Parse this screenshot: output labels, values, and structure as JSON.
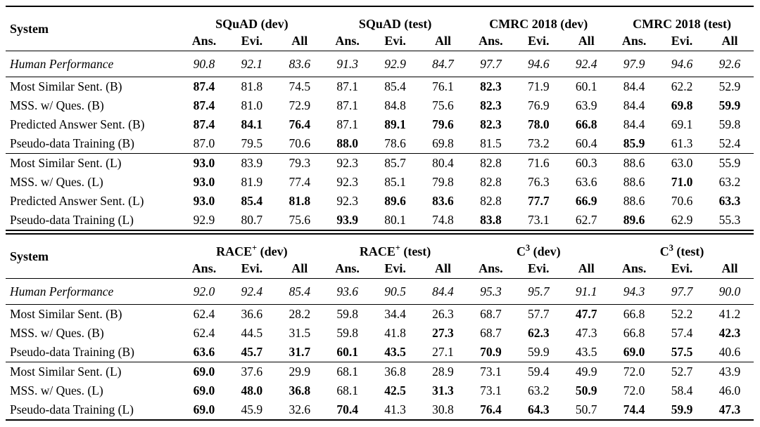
{
  "colors": {
    "text": "#000000",
    "background": "#ffffff",
    "rule": "#000000"
  },
  "tables": [
    {
      "system_header": "System",
      "groups": [
        {
          "base": "SQuAD",
          "sup": "",
          "rest": " (dev)"
        },
        {
          "base": "SQuAD",
          "sup": "",
          "rest": " (test)"
        },
        {
          "base": "CMRC 2018",
          "sup": "",
          "rest": " (dev)"
        },
        {
          "base": "CMRC 2018",
          "sup": "",
          "rest": " (test)"
        }
      ],
      "subheaders": [
        "Ans.",
        "Evi.",
        "All",
        "Ans.",
        "Evi.",
        "All",
        "Ans.",
        "Evi.",
        "All",
        "Ans.",
        "Evi.",
        "All"
      ],
      "human_row": {
        "label": "Human Performance",
        "values": [
          "90.8",
          "92.1",
          "83.6",
          "91.3",
          "92.9",
          "84.7",
          "97.7",
          "94.6",
          "92.4",
          "97.9",
          "94.6",
          "92.6"
        ]
      },
      "blocks": [
        {
          "rows": [
            {
              "label": "Most Similar Sent. (B)",
              "values": [
                "87.4",
                "81.8",
                "74.5",
                "87.1",
                "85.4",
                "76.1",
                "82.3",
                "71.9",
                "60.1",
                "84.4",
                "62.2",
                "52.9"
              ],
              "bold": [
                0,
                6
              ]
            },
            {
              "label": "MSS. w/ Ques. (B)",
              "values": [
                "87.4",
                "81.0",
                "72.9",
                "87.1",
                "84.8",
                "75.6",
                "82.3",
                "76.9",
                "63.9",
                "84.4",
                "69.8",
                "59.9"
              ],
              "bold": [
                0,
                6,
                10,
                11
              ]
            },
            {
              "label": "Predicted Answer Sent. (B)",
              "values": [
                "87.4",
                "84.1",
                "76.4",
                "87.1",
                "89.1",
                "79.6",
                "82.3",
                "78.0",
                "66.8",
                "84.4",
                "69.1",
                "59.8"
              ],
              "bold": [
                0,
                1,
                2,
                4,
                5,
                6,
                7,
                8
              ]
            },
            {
              "label": "Pseudo-data Training (B)",
              "values": [
                "87.0",
                "79.5",
                "70.6",
                "88.0",
                "78.6",
                "69.8",
                "81.5",
                "73.2",
                "60.4",
                "85.9",
                "61.3",
                "52.4"
              ],
              "bold": [
                3,
                9
              ]
            }
          ]
        },
        {
          "rows": [
            {
              "label": "Most Similar Sent. (L)",
              "values": [
                "93.0",
                "83.9",
                "79.3",
                "92.3",
                "85.7",
                "80.4",
                "82.8",
                "71.6",
                "60.3",
                "88.6",
                "63.0",
                "55.9"
              ],
              "bold": [
                0
              ]
            },
            {
              "label": "MSS. w/ Ques. (L)",
              "values": [
                "93.0",
                "81.9",
                "77.4",
                "92.3",
                "85.1",
                "79.8",
                "82.8",
                "76.3",
                "63.6",
                "88.6",
                "71.0",
                "63.2"
              ],
              "bold": [
                0,
                10
              ]
            },
            {
              "label": "Predicted Answer Sent. (L)",
              "values": [
                "93.0",
                "85.4",
                "81.8",
                "92.3",
                "89.6",
                "83.6",
                "82.8",
                "77.7",
                "66.9",
                "88.6",
                "70.6",
                "63.3"
              ],
              "bold": [
                0,
                1,
                2,
                4,
                5,
                7,
                8,
                11
              ]
            },
            {
              "label": "Pseudo-data Training (L)",
              "values": [
                "92.9",
                "80.7",
                "75.6",
                "93.9",
                "80.1",
                "74.8",
                "83.8",
                "73.1",
                "62.7",
                "89.6",
                "62.9",
                "55.3"
              ],
              "bold": [
                3,
                6,
                9
              ]
            }
          ]
        }
      ]
    },
    {
      "system_header": "System",
      "groups": [
        {
          "base": "RACE",
          "sup": "+",
          "rest": " (dev)"
        },
        {
          "base": "RACE",
          "sup": "+",
          "rest": " (test)"
        },
        {
          "base": "C",
          "sup": "3",
          "rest": " (dev)"
        },
        {
          "base": "C",
          "sup": "3",
          "rest": " (test)"
        }
      ],
      "subheaders": [
        "Ans.",
        "Evi.",
        "All",
        "Ans.",
        "Evi.",
        "All",
        "Ans.",
        "Evi.",
        "All",
        "Ans.",
        "Evi.",
        "All"
      ],
      "human_row": {
        "label": "Human Performance",
        "values": [
          "92.0",
          "92.4",
          "85.4",
          "93.6",
          "90.5",
          "84.4",
          "95.3",
          "95.7",
          "91.1",
          "94.3",
          "97.7",
          "90.0"
        ]
      },
      "blocks": [
        {
          "rows": [
            {
              "label": "Most Similar Sent. (B)",
              "values": [
                "62.4",
                "36.6",
                "28.2",
                "59.8",
                "34.4",
                "26.3",
                "68.7",
                "57.7",
                "47.7",
                "66.8",
                "52.2",
                "41.2"
              ],
              "bold": [
                8
              ]
            },
            {
              "label": "MSS. w/ Ques. (B)",
              "values": [
                "62.4",
                "44.5",
                "31.5",
                "59.8",
                "41.8",
                "27.3",
                "68.7",
                "62.3",
                "47.3",
                "66.8",
                "57.4",
                "42.3"
              ],
              "bold": [
                5,
                7,
                11
              ]
            },
            {
              "label": "Pseudo-data Training (B)",
              "values": [
                "63.6",
                "45.7",
                "31.7",
                "60.1",
                "43.5",
                "27.1",
                "70.9",
                "59.9",
                "43.5",
                "69.0",
                "57.5",
                "40.6"
              ],
              "bold": [
                0,
                1,
                2,
                3,
                4,
                6,
                9,
                10
              ]
            }
          ]
        },
        {
          "rows": [
            {
              "label": "Most Similar Sent. (L)",
              "values": [
                "69.0",
                "37.6",
                "29.9",
                "68.1",
                "36.8",
                "28.9",
                "73.1",
                "59.4",
                "49.9",
                "72.0",
                "52.7",
                "43.9"
              ],
              "bold": [
                0
              ]
            },
            {
              "label": "MSS. w/ Ques. (L)",
              "values": [
                "69.0",
                "48.0",
                "36.8",
                "68.1",
                "42.5",
                "31.3",
                "73.1",
                "63.2",
                "50.9",
                "72.0",
                "58.4",
                "46.0"
              ],
              "bold": [
                0,
                1,
                2,
                4,
                5,
                8
              ]
            },
            {
              "label": "Pseudo-data Training (L)",
              "values": [
                "69.0",
                "45.9",
                "32.6",
                "70.4",
                "41.3",
                "30.8",
                "76.4",
                "64.3",
                "50.7",
                "74.4",
                "59.9",
                "47.3"
              ],
              "bold": [
                0,
                3,
                6,
                7,
                9,
                10,
                11
              ]
            }
          ]
        }
      ]
    }
  ]
}
